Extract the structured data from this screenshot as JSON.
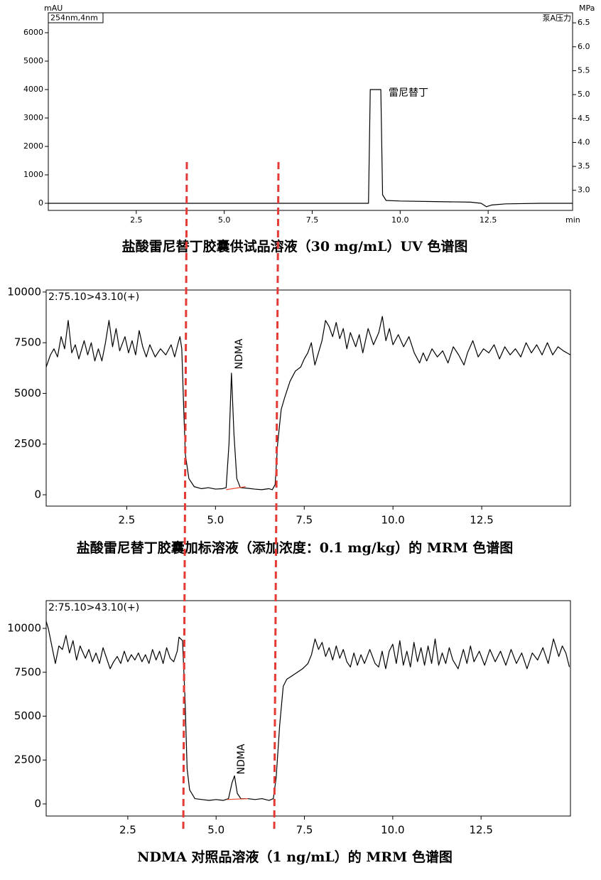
{
  "chart_data": [
    {
      "type": "line",
      "title": "盐酸雷尼替丁胶囊供试品溶液（30 mg/mL）UV 色谱图",
      "y_label": "mAU",
      "y2_label": "MPa",
      "x_label": "min",
      "channel_label": "254nm,4nm",
      "y2_series_label": "泵A压力",
      "peak_label": "雷尼替丁",
      "xlim": [
        0,
        14.9
      ],
      "xticks": [
        2.5,
        {
          "value": 5,
          "label": "5.0"
        },
        7.5,
        {
          "value": 10,
          "label": "10.0"
        },
        12.5
      ],
      "ylim": [
        -250,
        6700
      ],
      "yticks": [
        0,
        1000,
        2000,
        3000,
        4000,
        5000,
        6000
      ],
      "y2lim": [
        2.58,
        6.71
      ],
      "y2ticks": [
        {
          "value": 3,
          "label": "3.0"
        },
        3.5,
        {
          "value": 4,
          "label": "4.0"
        },
        4.5,
        {
          "value": 5,
          "label": "5.0"
        },
        5.5,
        {
          "value": 6,
          "label": "6.0"
        },
        6.5
      ],
      "series": [
        {
          "color": "#000000",
          "x": [
            0,
            9.1,
            9.15,
            9.45,
            9.5,
            9.6,
            10,
            11,
            12,
            12.3,
            12.45,
            12.6,
            13,
            14,
            14.9
          ],
          "values": [
            0,
            0,
            4000,
            4000,
            300,
            100,
            80,
            60,
            40,
            0,
            -120,
            -60,
            -20,
            0,
            0
          ]
        }
      ]
    },
    {
      "type": "line",
      "title": "盐酸雷尼替丁胶囊加标溶液（添加浓度：0.1 mg/kg）的 MRM 色谱图",
      "channel_label": "2:75.10>43.10(+)",
      "peak_label": "NDMA",
      "xlim": [
        0.23,
        15.0
      ],
      "xticks": [
        2.5,
        {
          "value": 5,
          "label": "5.0"
        },
        7.5,
        {
          "value": 10,
          "label": "10.0"
        },
        12.5
      ],
      "ylim": [
        -560,
        10100
      ],
      "yticks": [
        0,
        2500,
        5000,
        7500,
        10000
      ],
      "baseline": {
        "color": "#e8482e",
        "x": [
          5.3,
          5.85
        ],
        "values": [
          250,
          400
        ]
      },
      "series": [
        {
          "color": "#000000",
          "x": [
            0.23,
            0.35,
            0.45,
            0.55,
            0.65,
            0.75,
            0.85,
            0.95,
            1.05,
            1.15,
            1.3,
            1.4,
            1.5,
            1.6,
            1.7,
            1.8,
            1.9,
            2.0,
            2.1,
            2.2,
            2.3,
            2.45,
            2.55,
            2.65,
            2.75,
            2.85,
            2.95,
            3.05,
            3.15,
            3.3,
            3.45,
            3.6,
            3.75,
            3.85,
            3.95,
            4.0,
            4.05,
            4.1,
            4.15,
            4.25,
            4.4,
            4.6,
            4.8,
            5.0,
            5.2,
            5.3,
            5.38,
            5.45,
            5.52,
            5.6,
            5.7,
            5.9,
            6.1,
            6.3,
            6.5,
            6.6,
            6.68,
            6.75,
            6.85,
            6.95,
            7.1,
            7.25,
            7.4,
            7.5,
            7.6,
            7.7,
            7.8,
            7.9,
            8.0,
            8.1,
            8.2,
            8.3,
            8.4,
            8.5,
            8.6,
            8.7,
            8.8,
            8.95,
            9.05,
            9.15,
            9.3,
            9.45,
            9.6,
            9.7,
            9.8,
            9.9,
            10.0,
            10.15,
            10.3,
            10.45,
            10.6,
            10.75,
            10.85,
            10.95,
            11.1,
            11.25,
            11.4,
            11.55,
            11.7,
            11.85,
            12.0,
            12.1,
            12.25,
            12.4,
            12.55,
            12.7,
            12.85,
            13.0,
            13.15,
            13.3,
            13.45,
            13.6,
            13.75,
            13.9,
            14.05,
            14.2,
            14.35,
            14.5,
            14.65,
            14.8,
            14.9,
            15.0
          ],
          "values": [
            6300,
            6900,
            7200,
            6800,
            7800,
            7200,
            8600,
            7000,
            7400,
            6700,
            7600,
            6900,
            7500,
            6600,
            7200,
            6600,
            7500,
            8600,
            7300,
            8200,
            7100,
            7800,
            7000,
            7600,
            6900,
            8100,
            7300,
            6800,
            7400,
            6800,
            7200,
            6900,
            7400,
            6800,
            7500,
            7800,
            7200,
            4500,
            2000,
            800,
            400,
            300,
            350,
            280,
            300,
            350,
            2500,
            6000,
            3000,
            800,
            350,
            320,
            280,
            250,
            300,
            250,
            500,
            2500,
            4200,
            4800,
            5600,
            6100,
            6300,
            6700,
            7000,
            7500,
            6400,
            7000,
            7600,
            8600,
            8300,
            7800,
            8500,
            7700,
            8200,
            7200,
            8000,
            7300,
            7900,
            7000,
            8200,
            7400,
            8000,
            8800,
            7600,
            8200,
            7400,
            7900,
            7300,
            7800,
            7000,
            6500,
            7000,
            6600,
            7200,
            6800,
            7100,
            6500,
            7300,
            6900,
            6400,
            7000,
            7600,
            6800,
            7200,
            7000,
            7400,
            6700,
            7300,
            6900,
            7200,
            6800,
            7500,
            7000,
            7400,
            6900,
            7500,
            6900,
            7300,
            7100,
            7000,
            6900
          ]
        }
      ]
    },
    {
      "type": "line",
      "title": "NDMA 对照品溶液（1 ng/mL）的 MRM 色谱图",
      "channel_label": "2:75.10>43.10(+)",
      "peak_label": "NDMA",
      "xlim": [
        0.19,
        15.03
      ],
      "xticks": [
        2.5,
        {
          "value": 5,
          "label": "5.0"
        },
        7.5,
        {
          "value": 10,
          "label": "10.0"
        },
        12.5
      ],
      "ylim": [
        -690,
        11580
      ],
      "yticks": [
        0,
        2500,
        5000,
        7500,
        10000
      ],
      "baseline": {
        "color": "#e8482e",
        "x": [
          5.3,
          5.9
        ],
        "values": [
          250,
          300
        ]
      },
      "series": [
        {
          "color": "#000000",
          "x": [
            0.19,
            0.25,
            0.35,
            0.45,
            0.55,
            0.65,
            0.75,
            0.85,
            0.95,
            1.05,
            1.15,
            1.3,
            1.4,
            1.5,
            1.6,
            1.7,
            1.8,
            1.9,
            2.0,
            2.1,
            2.2,
            2.3,
            2.4,
            2.5,
            2.6,
            2.7,
            2.8,
            2.9,
            3.0,
            3.1,
            3.2,
            3.3,
            3.4,
            3.5,
            3.6,
            3.7,
            3.8,
            3.9,
            3.95,
            4.05,
            4.12,
            4.18,
            4.25,
            4.4,
            4.6,
            4.8,
            5.0,
            5.2,
            5.35,
            5.45,
            5.52,
            5.6,
            5.7,
            5.9,
            6.1,
            6.3,
            6.5,
            6.62,
            6.7,
            6.8,
            6.9,
            7.0,
            7.15,
            7.3,
            7.45,
            7.6,
            7.7,
            7.8,
            7.9,
            8.0,
            8.1,
            8.2,
            8.3,
            8.4,
            8.5,
            8.6,
            8.7,
            8.8,
            8.9,
            9.0,
            9.1,
            9.2,
            9.35,
            9.5,
            9.6,
            9.7,
            9.8,
            9.9,
            10.0,
            10.1,
            10.2,
            10.3,
            10.4,
            10.5,
            10.6,
            10.7,
            10.8,
            10.9,
            11.0,
            11.1,
            11.2,
            11.3,
            11.4,
            11.5,
            11.6,
            11.7,
            11.85,
            12.0,
            12.1,
            12.2,
            12.3,
            12.45,
            12.6,
            12.75,
            12.9,
            13.05,
            13.2,
            13.35,
            13.5,
            13.65,
            13.8,
            13.95,
            14.1,
            14.25,
            14.4,
            14.55,
            14.7,
            14.8,
            14.9,
            15.0
          ],
          "values": [
            10400,
            10000,
            9000,
            8000,
            9000,
            8800,
            9600,
            8600,
            9300,
            8200,
            9000,
            8300,
            8800,
            8100,
            8600,
            8000,
            8900,
            8300,
            7700,
            8100,
            8400,
            8000,
            8700,
            8100,
            8500,
            8200,
            8600,
            8100,
            8500,
            8000,
            8800,
            8200,
            8700,
            8000,
            8900,
            8300,
            8100,
            8700,
            9500,
            9300,
            6000,
            2000,
            800,
            300,
            250,
            200,
            250,
            200,
            300,
            1200,
            1600,
            600,
            300,
            300,
            250,
            300,
            200,
            300,
            1500,
            4500,
            6700,
            7100,
            7300,
            7500,
            7700,
            8000,
            8500,
            9400,
            8800,
            9200,
            8400,
            8900,
            8200,
            9000,
            8300,
            8800,
            8100,
            7800,
            8600,
            7900,
            8500,
            8000,
            8800,
            8000,
            7800,
            8700,
            7700,
            8700,
            9100,
            8000,
            9300,
            7900,
            8700,
            7800,
            9200,
            8100,
            8900,
            7900,
            9000,
            8000,
            9400,
            7900,
            8600,
            8000,
            8900,
            8200,
            7700,
            8800,
            8000,
            9000,
            8100,
            8700,
            7900,
            8800,
            8100,
            8700,
            7900,
            8800,
            8000,
            8600,
            7700,
            8600,
            8200,
            8900,
            8000,
            9400,
            8400,
            9000,
            8600,
            7800
          ]
        }
      ]
    }
  ]
}
